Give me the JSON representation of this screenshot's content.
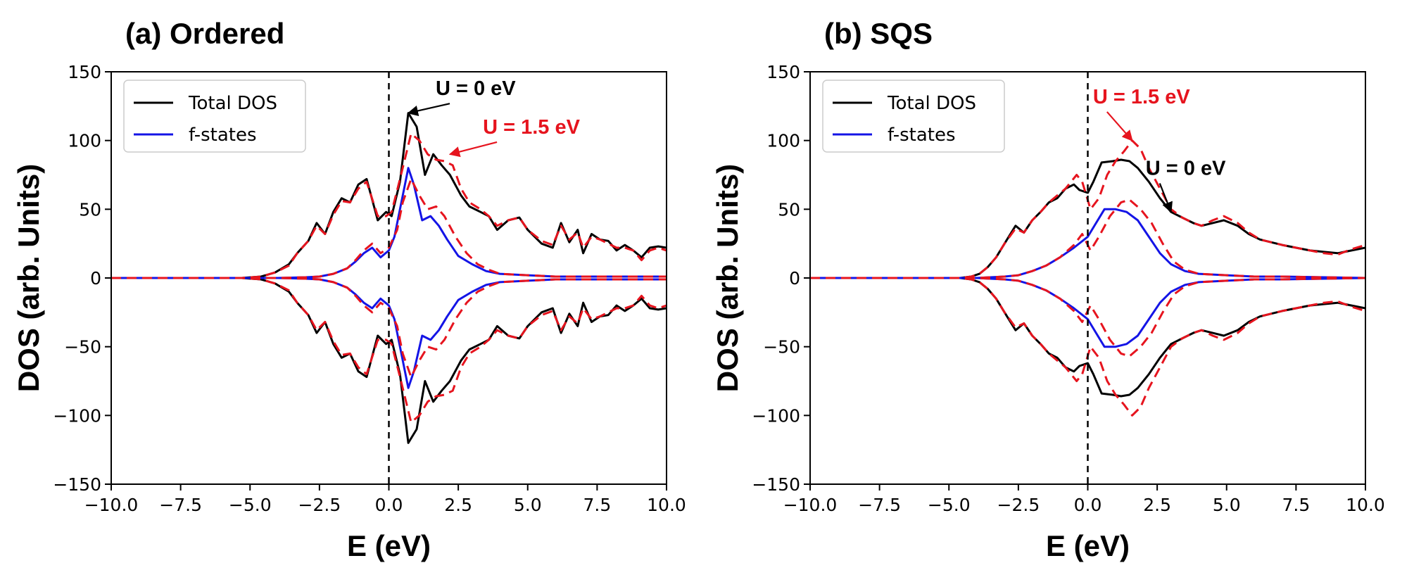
{
  "colors": {
    "total": "#000000",
    "f_states": "#1414e6",
    "u15": "#e6141e"
  },
  "chart_data": [
    {
      "type": "line",
      "title": "(a) Ordered",
      "xlabel": "E (eV)",
      "ylabel": "DOS (arb. Units)",
      "xlim": [
        -10,
        10
      ],
      "ylim": [
        -150,
        150
      ],
      "xticks": [
        -10,
        -7.5,
        -5,
        -2.5,
        0,
        2.5,
        5,
        7.5,
        10
      ],
      "xtick_labels": [
        "−10.0",
        "−7.5",
        "−5.0",
        "−2.5",
        "0.0",
        "2.5",
        "5.0",
        "7.5",
        "10.0"
      ],
      "yticks": [
        150,
        100,
        50,
        0,
        -50,
        -100,
        -150
      ],
      "ytick_labels": [
        "150",
        "100",
        "50",
        "0",
        "−50",
        "−100",
        "−150"
      ],
      "grid": false,
      "legend": {
        "position": "top-left",
        "entries": [
          "Total DOS",
          "f-states"
        ]
      },
      "fermi_level": 0,
      "annotations": [
        {
          "text": "U = 0 eV",
          "color": "#000000",
          "points_to": [
            0.7,
            120
          ],
          "text_at": [
            2.7,
            133
          ]
        },
        {
          "text": "U = 1.5 eV",
          "color": "#e6141e",
          "points_to": [
            2.2,
            90
          ],
          "text_at": [
            4.4,
            105
          ]
        }
      ],
      "series": [
        {
          "name": "Total DOS",
          "U": "0 eV",
          "x": [
            -10,
            -5.3,
            -4.6,
            -4.1,
            -3.6,
            -3.3,
            -2.9,
            -2.6,
            -2.3,
            -2.0,
            -1.7,
            -1.4,
            -1.1,
            -0.8,
            -0.4,
            -0.1,
            0.1,
            0.4,
            0.7,
            1.0,
            1.3,
            1.6,
            1.9,
            2.2,
            2.6,
            2.9,
            3.3,
            3.6,
            3.9,
            4.3,
            4.7,
            5.0,
            5.5,
            5.9,
            6.2,
            6.5,
            6.8,
            7.0,
            7.3,
            7.6,
            7.9,
            8.2,
            8.5,
            8.8,
            9.1,
            9.4,
            9.7,
            10
          ],
          "y": [
            0,
            0,
            1,
            4,
            10,
            18,
            27,
            40,
            32,
            48,
            58,
            55,
            68,
            72,
            42,
            48,
            45,
            70,
            120,
            110,
            75,
            90,
            82,
            75,
            60,
            52,
            48,
            45,
            35,
            42,
            44,
            35,
            25,
            22,
            40,
            26,
            35,
            18,
            32,
            28,
            27,
            20,
            24,
            20,
            15,
            22,
            23,
            22
          ]
        },
        {
          "name": "Total DOS (U = 1.5 eV)",
          "U": "1.5 eV",
          "x": [
            -10,
            -5.3,
            -4.6,
            -4.1,
            -3.6,
            -3.3,
            -2.9,
            -2.6,
            -2.3,
            -2.0,
            -1.7,
            -1.4,
            -1.1,
            -0.8,
            -0.4,
            -0.1,
            0.1,
            0.4,
            0.8,
            1.1,
            1.4,
            1.7,
            2.0,
            2.3,
            2.6,
            2.9,
            3.3,
            3.6,
            3.9,
            4.3,
            4.7,
            5.0,
            5.5,
            5.9,
            6.2,
            6.5,
            6.8,
            7.0,
            7.3,
            7.6,
            7.9,
            8.2,
            8.5,
            8.8,
            9.1,
            9.4,
            9.7,
            10
          ],
          "y": [
            0,
            0,
            1,
            4,
            9,
            18,
            27,
            38,
            32,
            46,
            56,
            55,
            65,
            70,
            45,
            45,
            48,
            72,
            105,
            100,
            90,
            86,
            85,
            82,
            65,
            55,
            50,
            45,
            38,
            42,
            44,
            35,
            27,
            24,
            38,
            28,
            33,
            22,
            30,
            28,
            25,
            22,
            22,
            20,
            13,
            20,
            22,
            20
          ]
        },
        {
          "name": "f-states",
          "U": "0 eV",
          "x": [
            -10,
            -4.0,
            -3.0,
            -2.5,
            -2.0,
            -1.5,
            -1.2,
            -0.9,
            -0.6,
            -0.3,
            0.0,
            0.2,
            0.4,
            0.7,
            0.9,
            1.2,
            1.5,
            1.8,
            2.1,
            2.5,
            3.0,
            3.5,
            4.0,
            5.0,
            6.0,
            7.0,
            10
          ],
          "y": [
            0,
            0,
            0.5,
            1,
            3,
            7,
            12,
            18,
            22,
            15,
            20,
            30,
            50,
            80,
            68,
            42,
            45,
            38,
            28,
            16,
            10,
            5,
            3,
            2,
            1,
            1,
            1
          ]
        },
        {
          "name": "f-states (U = 1.5 eV)",
          "U": "1.5 eV",
          "x": [
            -10,
            -4.0,
            -3.0,
            -2.5,
            -2.0,
            -1.5,
            -1.2,
            -0.9,
            -0.6,
            -0.3,
            0.0,
            0.3,
            0.5,
            0.8,
            1.1,
            1.4,
            1.7,
            2.0,
            2.4,
            2.8,
            3.2,
            3.6,
            4.0,
            5.0,
            6.0,
            7.0,
            10
          ],
          "y": [
            0,
            0,
            0.5,
            1,
            3,
            7,
            13,
            20,
            25,
            18,
            22,
            35,
            55,
            72,
            60,
            50,
            52,
            45,
            30,
            18,
            10,
            6,
            3,
            2,
            1,
            1,
            1
          ]
        }
      ]
    },
    {
      "type": "line",
      "title": "(b) SQS",
      "xlabel": "E (eV)",
      "ylabel": "DOS (arb. Units)",
      "xlim": [
        -10,
        10
      ],
      "ylim": [
        -150,
        150
      ],
      "xticks": [
        -10,
        -7.5,
        -5,
        -2.5,
        0,
        2.5,
        5,
        7.5,
        10
      ],
      "xtick_labels": [
        "−10.0",
        "−7.5",
        "−5.0",
        "−2.5",
        "0.0",
        "2.5",
        "5.0",
        "7.5",
        "10.0"
      ],
      "yticks": [
        150,
        100,
        50,
        0,
        -50,
        -100,
        -150
      ],
      "ytick_labels": [
        "150",
        "100",
        "50",
        "0",
        "−50",
        "−100",
        "−150"
      ],
      "grid": false,
      "legend": {
        "position": "top-left",
        "entries": [
          "Total DOS",
          "f-states"
        ]
      },
      "fermi_level": 0,
      "annotations": [
        {
          "text": "U = 1.5 eV",
          "color": "#e6141e",
          "points_to": [
            1.6,
            100
          ],
          "text_at": [
            1.2,
            127
          ]
        },
        {
          "text": "U = 0 eV",
          "color": "#000000",
          "points_to": [
            3.0,
            48
          ],
          "text_at": [
            3.1,
            75
          ]
        }
      ],
      "series": [
        {
          "name": "Total DOS",
          "U": "0 eV",
          "x": [
            -10,
            -4.6,
            -4.2,
            -3.9,
            -3.6,
            -3.3,
            -3.0,
            -2.6,
            -2.3,
            -2.0,
            -1.7,
            -1.4,
            -1.1,
            -0.8,
            -0.5,
            -0.3,
            0.0,
            0.2,
            0.5,
            0.9,
            1.2,
            1.5,
            1.8,
            2.2,
            2.6,
            3.0,
            3.4,
            3.8,
            4.1,
            4.5,
            4.9,
            5.4,
            5.8,
            6.2,
            6.6,
            7.0,
            7.5,
            8.0,
            8.5,
            9.0,
            9.5,
            10
          ],
          "y": [
            0,
            0,
            1,
            3,
            8,
            15,
            25,
            38,
            33,
            42,
            48,
            55,
            58,
            65,
            68,
            64,
            62,
            70,
            84,
            85,
            86,
            85,
            80,
            70,
            58,
            48,
            44,
            40,
            38,
            40,
            42,
            38,
            32,
            28,
            26,
            24,
            22,
            20,
            19,
            18,
            20,
            22
          ]
        },
        {
          "name": "Total DOS (U = 1.5 eV)",
          "U": "1.5 eV",
          "x": [
            -10,
            -4.6,
            -4.2,
            -3.9,
            -3.6,
            -3.3,
            -3.0,
            -2.6,
            -2.3,
            -2.0,
            -1.7,
            -1.4,
            -1.1,
            -0.8,
            -0.4,
            -0.2,
            0.1,
            0.4,
            0.7,
            1.0,
            1.3,
            1.6,
            1.9,
            2.2,
            2.6,
            3.0,
            3.4,
            3.8,
            4.1,
            4.5,
            4.9,
            5.4,
            5.8,
            6.2,
            6.6,
            7.0,
            7.5,
            8.0,
            8.5,
            9.0,
            9.5,
            10
          ],
          "y": [
            0,
            0,
            1,
            3,
            8,
            15,
            25,
            36,
            33,
            42,
            48,
            55,
            60,
            65,
            75,
            70,
            50,
            58,
            75,
            85,
            92,
            100,
            94,
            80,
            65,
            50,
            44,
            40,
            38,
            42,
            45,
            40,
            33,
            28,
            26,
            24,
            22,
            20,
            18,
            17,
            21,
            24
          ]
        },
        {
          "name": "f-states",
          "U": "0 eV",
          "x": [
            -10,
            -4.0,
            -3.0,
            -2.5,
            -2.0,
            -1.5,
            -1.0,
            -0.5,
            0.0,
            0.3,
            0.6,
            1.0,
            1.4,
            1.8,
            2.2,
            2.6,
            3.0,
            3.5,
            4.0,
            5.0,
            6.0,
            7.0,
            10
          ],
          "y": [
            0,
            0,
            1,
            2,
            5,
            9,
            15,
            22,
            30,
            40,
            50,
            50,
            48,
            42,
            30,
            18,
            10,
            5,
            3,
            2,
            1,
            1,
            0
          ]
        },
        {
          "name": "f-states (U = 1.5 eV)",
          "U": "1.5 eV",
          "x": [
            -10,
            -4.0,
            -3.0,
            -2.5,
            -2.0,
            -1.5,
            -1.0,
            -0.5,
            -0.2,
            0.1,
            0.4,
            0.8,
            1.2,
            1.5,
            1.9,
            2.3,
            2.7,
            3.1,
            3.5,
            4.0,
            5.0,
            6.0,
            7.0,
            10
          ],
          "y": [
            0,
            0,
            1,
            2,
            5,
            9,
            15,
            24,
            32,
            20,
            30,
            45,
            55,
            57,
            50,
            40,
            25,
            12,
            6,
            3,
            2,
            1,
            1,
            0
          ]
        }
      ]
    }
  ]
}
